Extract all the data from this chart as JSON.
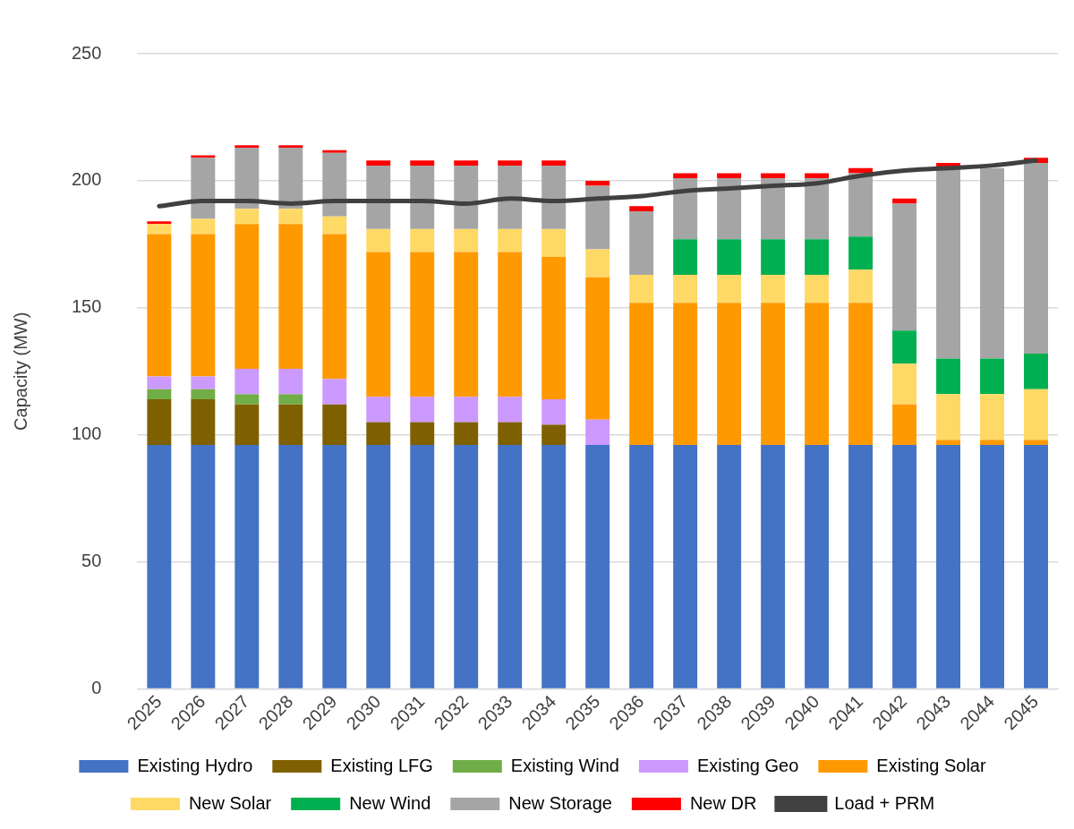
{
  "chart_data": {
    "type": "bar",
    "stacked": true,
    "ylabel": "Capacity (MW)",
    "categories": [
      "2025",
      "2026",
      "2027",
      "2028",
      "2029",
      "2030",
      "2031",
      "2032",
      "2033",
      "2034",
      "2035",
      "2036",
      "2037",
      "2038",
      "2039",
      "2040",
      "2041",
      "2042",
      "2043",
      "2044",
      "2045"
    ],
    "ylim": [
      0,
      250
    ],
    "yticks": [
      0,
      50,
      100,
      150,
      200,
      250
    ],
    "grid": "y",
    "legend": "bottom",
    "series": [
      {
        "name": "Existing Hydro",
        "color": "#4472c4",
        "values": [
          96,
          96,
          96,
          96,
          96,
          96,
          96,
          96,
          96,
          96,
          96,
          96,
          96,
          96,
          96,
          96,
          96,
          96,
          96,
          96,
          96
        ]
      },
      {
        "name": "Existing LFG",
        "color": "#7f6000",
        "values": [
          18,
          18,
          16,
          16,
          16,
          9,
          9,
          9,
          9,
          8,
          0,
          0,
          0,
          0,
          0,
          0,
          0,
          0,
          0,
          0,
          0
        ]
      },
      {
        "name": "Existing Wind",
        "color": "#70ad47",
        "values": [
          4,
          4,
          4,
          4,
          0,
          0,
          0,
          0,
          0,
          0,
          0,
          0,
          0,
          0,
          0,
          0,
          0,
          0,
          0,
          0,
          0
        ]
      },
      {
        "name": "Existing Geo",
        "color": "#cc99ff",
        "values": [
          5,
          5,
          10,
          10,
          10,
          10,
          10,
          10,
          10,
          10,
          10,
          0,
          0,
          0,
          0,
          0,
          0,
          0,
          0,
          0,
          0
        ]
      },
      {
        "name": "Existing Solar",
        "color": "#ff9900",
        "values": [
          56,
          56,
          57,
          57,
          57,
          57,
          57,
          57,
          57,
          56,
          56,
          56,
          56,
          56,
          56,
          56,
          56,
          16,
          2,
          2,
          2
        ]
      },
      {
        "name": "New Solar",
        "color": "#ffd966",
        "values": [
          4,
          6,
          6,
          6,
          7,
          9,
          9,
          9,
          9,
          11,
          11,
          11,
          11,
          11,
          11,
          11,
          13,
          16,
          18,
          18,
          20
        ]
      },
      {
        "name": "New Wind",
        "color": "#00b050",
        "values": [
          0,
          0,
          0,
          0,
          0,
          0,
          0,
          0,
          0,
          0,
          0,
          0,
          14,
          14,
          14,
          14,
          13,
          13,
          14,
          14,
          14
        ]
      },
      {
        "name": "New Storage",
        "color": "#a5a5a5",
        "values": [
          0,
          24,
          24,
          24,
          25,
          25,
          25,
          25,
          25,
          25,
          25,
          25,
          24,
          24,
          24,
          24,
          25,
          50,
          75,
          75,
          75
        ]
      },
      {
        "name": "New DR",
        "color": "#ff0000",
        "values": [
          1,
          1,
          1,
          1,
          1,
          2,
          2,
          2,
          2,
          2,
          2,
          2,
          2,
          2,
          2,
          2,
          2,
          2,
          2,
          null,
          2
        ]
      },
      {
        "name": "Load + PRM",
        "type": "line",
        "color": "#404040",
        "marker": "none",
        "line_style": "solid",
        "values": [
          190,
          192,
          192,
          191,
          192,
          192,
          192,
          191,
          193,
          192,
          193,
          194,
          196,
          197,
          198,
          199,
          202,
          204,
          205,
          206,
          208
        ]
      }
    ]
  }
}
